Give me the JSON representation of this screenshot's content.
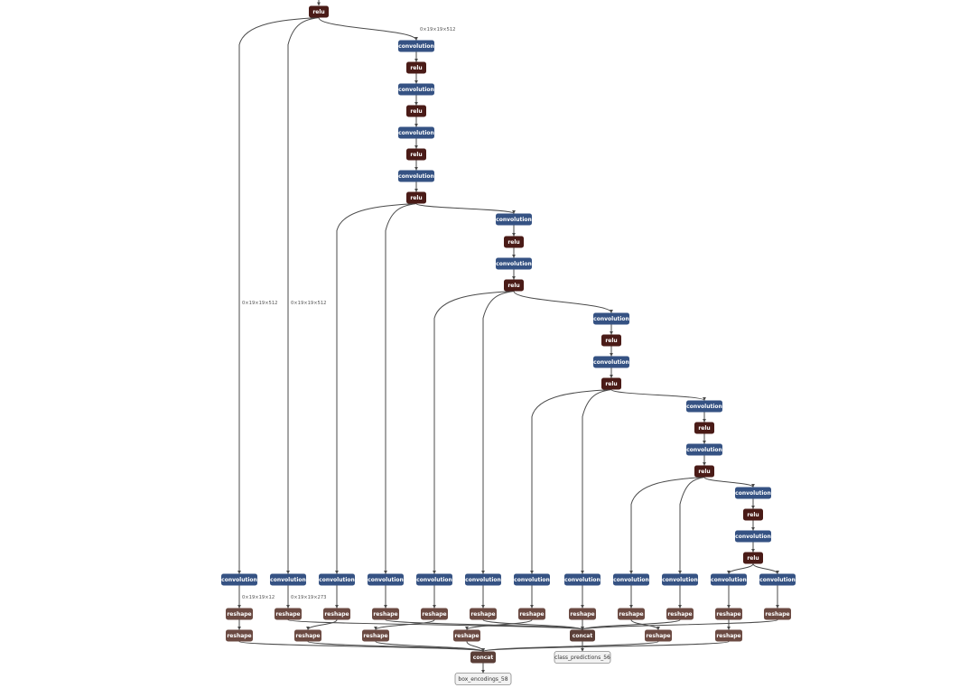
{
  "colors": {
    "convolution": "#355283",
    "relu": "#4a1b17",
    "reshape": "#6b4a42",
    "concat": "#5b3f38",
    "output_fill": "#f2f2f2",
    "edge": "#4a4a4a"
  },
  "nodes": [
    {
      "id": "r0",
      "op": "relu",
      "label": "relu"
    },
    {
      "id": "c1",
      "op": "convolution",
      "label": "convolution"
    },
    {
      "id": "r1",
      "op": "relu",
      "label": "relu"
    },
    {
      "id": "c2",
      "op": "convolution",
      "label": "convolution"
    },
    {
      "id": "r2",
      "op": "relu",
      "label": "relu"
    },
    {
      "id": "c3",
      "op": "convolution",
      "label": "convolution"
    },
    {
      "id": "r3",
      "op": "relu",
      "label": "relu"
    },
    {
      "id": "c4",
      "op": "convolution",
      "label": "convolution"
    },
    {
      "id": "r4",
      "op": "relu",
      "label": "relu"
    },
    {
      "id": "c5",
      "op": "convolution",
      "label": "convolution"
    },
    {
      "id": "r5",
      "op": "relu",
      "label": "relu"
    },
    {
      "id": "c6",
      "op": "convolution",
      "label": "convolution"
    },
    {
      "id": "r6",
      "op": "relu",
      "label": "relu"
    },
    {
      "id": "c7",
      "op": "convolution",
      "label": "convolution"
    },
    {
      "id": "r7",
      "op": "relu",
      "label": "relu"
    },
    {
      "id": "c8",
      "op": "convolution",
      "label": "convolution"
    },
    {
      "id": "r8",
      "op": "relu",
      "label": "relu"
    },
    {
      "id": "c9",
      "op": "convolution",
      "label": "convolution"
    },
    {
      "id": "r9",
      "op": "relu",
      "label": "relu"
    },
    {
      "id": "c10",
      "op": "convolution",
      "label": "convolution"
    },
    {
      "id": "r10",
      "op": "relu",
      "label": "relu"
    },
    {
      "id": "c11",
      "op": "convolution",
      "label": "convolution"
    },
    {
      "id": "r11",
      "op": "relu",
      "label": "relu"
    },
    {
      "id": "h1",
      "op": "convolution",
      "label": "convolution"
    },
    {
      "id": "h2",
      "op": "convolution",
      "label": "convolution"
    },
    {
      "id": "h3",
      "op": "convolution",
      "label": "convolution"
    },
    {
      "id": "h4",
      "op": "convolution",
      "label": "convolution"
    },
    {
      "id": "h5",
      "op": "convolution",
      "label": "convolution"
    },
    {
      "id": "h6",
      "op": "convolution",
      "label": "convolution"
    },
    {
      "id": "h7",
      "op": "convolution",
      "label": "convolution"
    },
    {
      "id": "h8",
      "op": "convolution",
      "label": "convolution"
    },
    {
      "id": "h9",
      "op": "convolution",
      "label": "convolution"
    },
    {
      "id": "h10",
      "op": "convolution",
      "label": "convolution"
    },
    {
      "id": "h11",
      "op": "convolution",
      "label": "convolution"
    },
    {
      "id": "h12",
      "op": "convolution",
      "label": "convolution"
    },
    {
      "id": "s1",
      "op": "reshape",
      "label": "reshape"
    },
    {
      "id": "s2",
      "op": "reshape",
      "label": "reshape"
    },
    {
      "id": "s3",
      "op": "reshape",
      "label": "reshape"
    },
    {
      "id": "s4",
      "op": "reshape",
      "label": "reshape"
    },
    {
      "id": "s5",
      "op": "reshape",
      "label": "reshape"
    },
    {
      "id": "s6",
      "op": "reshape",
      "label": "reshape"
    },
    {
      "id": "s7",
      "op": "reshape",
      "label": "reshape"
    },
    {
      "id": "s8",
      "op": "reshape",
      "label": "reshape"
    },
    {
      "id": "s9",
      "op": "reshape",
      "label": "reshape"
    },
    {
      "id": "s10",
      "op": "reshape",
      "label": "reshape"
    },
    {
      "id": "s11",
      "op": "reshape",
      "label": "reshape"
    },
    {
      "id": "s12",
      "op": "reshape",
      "label": "reshape"
    },
    {
      "id": "t1",
      "op": "reshape",
      "label": "reshape"
    },
    {
      "id": "t2",
      "op": "reshape",
      "label": "reshape"
    },
    {
      "id": "t3",
      "op": "reshape",
      "label": "reshape"
    },
    {
      "id": "t4",
      "op": "reshape",
      "label": "reshape"
    },
    {
      "id": "t5",
      "op": "reshape",
      "label": "reshape"
    },
    {
      "id": "t6",
      "op": "reshape",
      "label": "reshape"
    },
    {
      "id": "cc_class",
      "op": "concat",
      "label": "concat"
    },
    {
      "id": "cc_box",
      "op": "concat",
      "label": "concat"
    },
    {
      "id": "out_class",
      "op": "output",
      "label": "class_predictions_56"
    },
    {
      "id": "out_box",
      "op": "output",
      "label": "box_encodings_58"
    }
  ],
  "edges": [
    {
      "from": "r0",
      "to": "c1",
      "label": "0×19×19×512"
    },
    {
      "from": "r0",
      "to": "h1",
      "label": "0×19×19×512"
    },
    {
      "from": "r0",
      "to": "h2",
      "label": "0×19×19×512"
    },
    {
      "from": "c1",
      "to": "r1"
    },
    {
      "from": "r1",
      "to": "c2"
    },
    {
      "from": "c2",
      "to": "r2"
    },
    {
      "from": "r2",
      "to": "c3"
    },
    {
      "from": "c3",
      "to": "r3"
    },
    {
      "from": "r3",
      "to": "c4"
    },
    {
      "from": "c4",
      "to": "r4"
    },
    {
      "from": "r4",
      "to": "h3"
    },
    {
      "from": "r4",
      "to": "h4"
    },
    {
      "from": "r4",
      "to": "c5"
    },
    {
      "from": "c5",
      "to": "r5"
    },
    {
      "from": "r5",
      "to": "c6"
    },
    {
      "from": "c6",
      "to": "r6"
    },
    {
      "from": "r6",
      "to": "h5"
    },
    {
      "from": "r6",
      "to": "h6"
    },
    {
      "from": "r6",
      "to": "c7"
    },
    {
      "from": "c7",
      "to": "r7"
    },
    {
      "from": "r7",
      "to": "c8"
    },
    {
      "from": "c8",
      "to": "r8"
    },
    {
      "from": "r8",
      "to": "h7"
    },
    {
      "from": "r8",
      "to": "h8"
    },
    {
      "from": "r8",
      "to": "c9"
    },
    {
      "from": "c9",
      "to": "r9"
    },
    {
      "from": "r9",
      "to": "c10"
    },
    {
      "from": "c10",
      "to": "r10"
    },
    {
      "from": "r10",
      "to": "h9"
    },
    {
      "from": "r10",
      "to": "h10"
    },
    {
      "from": "r10",
      "to": "c11"
    },
    {
      "from": "c11",
      "to": "r11"
    },
    {
      "from": "r11",
      "to": "c12"
    },
    {
      "from": "c12",
      "to": "r12"
    },
    {
      "from": "r12",
      "to": "h11"
    },
    {
      "from": "r12",
      "to": "h12"
    },
    {
      "from": "h1",
      "to": "s1",
      "label": "0×19×19×12"
    },
    {
      "from": "h2",
      "to": "s2",
      "label": "0×19×19×273"
    },
    {
      "from": "h3",
      "to": "s3"
    },
    {
      "from": "h4",
      "to": "s4"
    },
    {
      "from": "h5",
      "to": "s5"
    },
    {
      "from": "h6",
      "to": "s6"
    },
    {
      "from": "h7",
      "to": "s7"
    },
    {
      "from": "h8",
      "to": "s8"
    },
    {
      "from": "h9",
      "to": "s9"
    },
    {
      "from": "h10",
      "to": "s10"
    },
    {
      "from": "h11",
      "to": "s11"
    },
    {
      "from": "h12",
      "to": "s12"
    },
    {
      "from": "s1",
      "to": "t1"
    },
    {
      "from": "s3",
      "to": "t2"
    },
    {
      "from": "s5",
      "to": "t3"
    },
    {
      "from": "s7",
      "to": "t4"
    },
    {
      "from": "s9",
      "to": "t5"
    },
    {
      "from": "s11",
      "to": "t6"
    },
    {
      "from": "s2",
      "to": "cc_class"
    },
    {
      "from": "s4",
      "to": "cc_class"
    },
    {
      "from": "s6",
      "to": "cc_class"
    },
    {
      "from": "s8",
      "to": "cc_class"
    },
    {
      "from": "s10",
      "to": "cc_class"
    },
    {
      "from": "s12",
      "to": "cc_class"
    },
    {
      "from": "t1",
      "to": "cc_box"
    },
    {
      "from": "t2",
      "to": "cc_box"
    },
    {
      "from": "t3",
      "to": "cc_box"
    },
    {
      "from": "t4",
      "to": "cc_box"
    },
    {
      "from": "t5",
      "to": "cc_box"
    },
    {
      "from": "t6",
      "to": "cc_box"
    },
    {
      "from": "cc_class",
      "to": "out_class"
    },
    {
      "from": "cc_box",
      "to": "out_box"
    }
  ]
}
